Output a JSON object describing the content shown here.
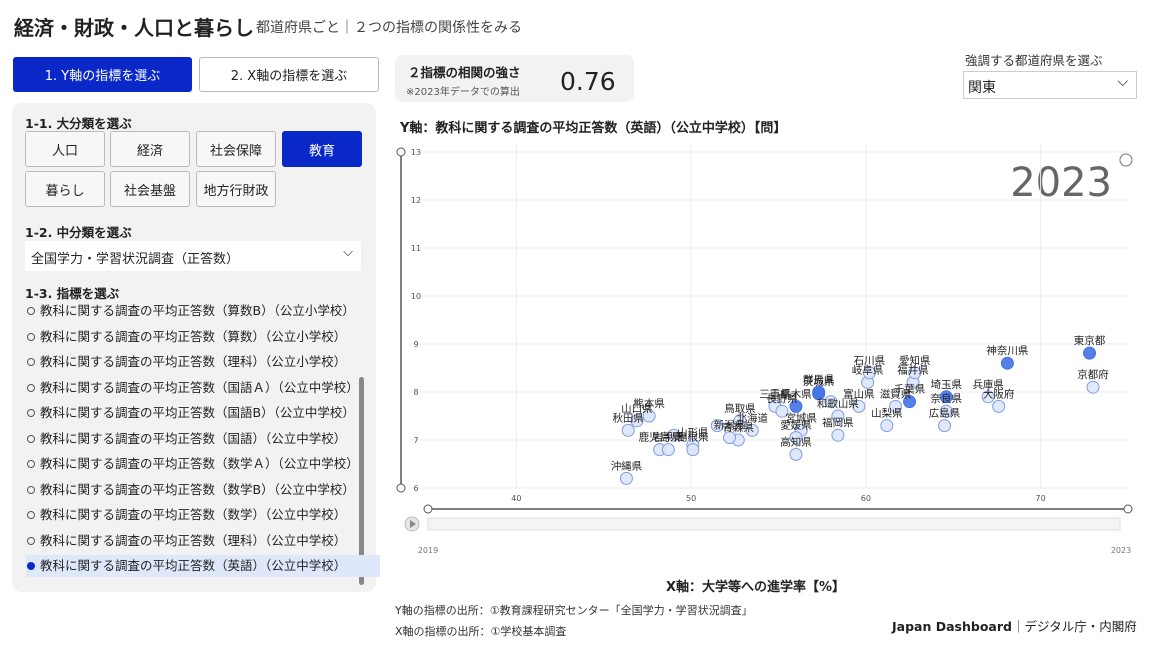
{
  "header": {
    "title": "経済・財政・人口と暮らし",
    "subtitle": "都道府県ごと｜２つの指標の関係性をみる"
  },
  "tabs": [
    "1. Y軸の指標を選ぶ",
    "2. X軸の指標を選ぶ"
  ],
  "correlation": {
    "label": "２指標の相関の強さ",
    "note": "※2023年データでの算出",
    "value": "0.76"
  },
  "highlight_select": {
    "label": "強調する都道府県を選ぶ",
    "value": "関東"
  },
  "panel": {
    "section1": "1-1. 大分類を選ぶ",
    "categories": [
      "人口",
      "経済",
      "社会保障",
      "教育",
      "暮らし",
      "社会基盤",
      "地方行財政"
    ],
    "section2": "1-2. 中分類を選ぶ",
    "subcategory": "全国学力・学習状況調査（正答数）",
    "section3": "1-3. 指標を選ぶ",
    "indicators": [
      "教科に関する調査の平均正答数（算数B）（公立小学校）",
      "教科に関する調査の平均正答数（算数）（公立小学校）",
      "教科に関する調査の平均正答数（理科）（公立小学校）",
      "教科に関する調査の平均正答数（国語Ａ）（公立中学校）",
      "教科に関する調査の平均正答数（国語B）（公立中学校）",
      "教科に関する調査の平均正答数（国語）（公立中学校）",
      "教科に関する調査の平均正答数（数学Ａ）（公立中学校）",
      "教科に関する調査の平均正答数（数学B）（公立中学校）",
      "教科に関する調査の平均正答数（数学）（公立中学校）",
      "教科に関する調査の平均正答数（理科）（公立中学校）",
      "教科に関する調査の平均正答数（英語）（公立中学校）"
    ]
  },
  "chart_data": {
    "type": "scatter",
    "title": "Y軸：教科に関する調査の平均正答数（英語）（公立中学校）【問】",
    "x_label": "X軸：大学等への進学率【%】",
    "year": "2023",
    "timeline": [
      "2019",
      "2023"
    ],
    "xlim": [
      33.4,
      75
    ],
    "xticks": [
      40,
      50,
      60,
      70
    ],
    "ylim": [
      6,
      13
    ],
    "yticks": [
      6,
      7,
      8,
      9,
      10,
      11,
      12,
      13
    ],
    "colors": {
      "normal": "#dde7fb",
      "highlight": "#4472e4"
    },
    "x": [
      72.8,
      73.0,
      68.1,
      67.0,
      67.6,
      64.6,
      64.6,
      64.5,
      62.5,
      62.7,
      62.8,
      60.1,
      60.2,
      61.2,
      61.7,
      59.6,
      57.3,
      57.3,
      56.0,
      54.8,
      55.2,
      58.4,
      58.4,
      56.3,
      56.0,
      56.0,
      52.8,
      53.5,
      52.7,
      52.2,
      50.1,
      50.1,
      47.6,
      46.9,
      46.4,
      48.2,
      48.7,
      46.3,
      49.0,
      51.5,
      58.0
    ],
    "values": [
      8.81,
      8.1,
      8.6,
      7.9,
      7.7,
      7.9,
      7.6,
      7.3,
      7.8,
      8.2,
      8.4,
      8.2,
      8.4,
      7.3,
      7.7,
      7.7,
      7.96,
      8.0,
      7.7,
      7.7,
      7.6,
      7.5,
      7.1,
      7.2,
      7.05,
      6.7,
      7.4,
      7.2,
      7.0,
      7.05,
      6.9,
      6.8,
      7.5,
      7.4,
      7.2,
      6.8,
      6.8,
      6.2,
      7.1,
      7.3,
      7.8
    ],
    "labels": [
      "東京都",
      "京都府",
      "神奈川県",
      "兵庫県",
      "大阪府",
      "埼玉県",
      "奈良県",
      "広島県",
      "千葉県",
      "福井県",
      "愛知県",
      "岐阜県",
      "石川県",
      "山梨県",
      "滋賀県",
      "富山県",
      "茨城県",
      "群馬県",
      "栃木県",
      "三重県",
      "長野県",
      "和歌山県",
      "福岡県",
      "宮城県",
      "愛媛県",
      "高知県",
      "鳥取県",
      "北海道",
      "青森県",
      "新潟県",
      "山形県",
      "島根県",
      "熊本県",
      "山口県",
      "秋田県",
      "鹿児島県",
      "岩手県",
      "沖縄県",
      null,
      null,
      null
    ],
    "highlight": [
      true,
      false,
      true,
      false,
      false,
      true,
      false,
      false,
      true,
      false,
      false,
      false,
      false,
      false,
      false,
      false,
      true,
      true,
      true,
      false,
      false,
      false,
      false,
      false,
      false,
      false,
      false,
      false,
      false,
      false,
      false,
      false,
      false,
      false,
      false,
      false,
      false,
      false,
      false,
      false,
      false
    ]
  },
  "sources": [
    "Y軸の指標の出所：①教育課程研究センター「全国学力・学習状況調査」",
    "X軸の指標の出所：①学校基本調査"
  ],
  "footer": {
    "brand": "Japan Dashboard",
    "org": "｜デジタル庁・内閣府"
  }
}
